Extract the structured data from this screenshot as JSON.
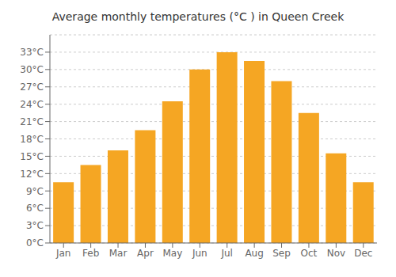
{
  "chart_data": {
    "type": "bar",
    "title": "Average monthly temperatures (°C ) in Queen Creek",
    "categories": [
      "Jan",
      "Feb",
      "Mar",
      "Apr",
      "May",
      "Jun",
      "Jul",
      "Aug",
      "Sep",
      "Oct",
      "Nov",
      "Dec"
    ],
    "values": [
      10.5,
      13.5,
      16.0,
      19.5,
      24.5,
      30.0,
      33.0,
      31.5,
      28.0,
      22.5,
      15.5,
      10.5
    ],
    "color": "#F5A623",
    "ylim": [
      0,
      36
    ],
    "yticks": [
      {
        "value": 0,
        "label": "0°C"
      },
      {
        "value": 3,
        "label": "3°C"
      },
      {
        "value": 6,
        "label": "6°C"
      },
      {
        "value": 9,
        "label": "9°C"
      },
      {
        "value": 12,
        "label": "12°C"
      },
      {
        "value": 15,
        "label": "15°C"
      },
      {
        "value": 18,
        "label": "18°C"
      },
      {
        "value": 21,
        "label": "21°C"
      },
      {
        "value": 24,
        "label": "24°C"
      },
      {
        "value": 27,
        "label": "27°C"
      },
      {
        "value": 30,
        "label": "30°C"
      },
      {
        "value": 33,
        "label": "33°C"
      }
    ],
    "grid": true
  }
}
